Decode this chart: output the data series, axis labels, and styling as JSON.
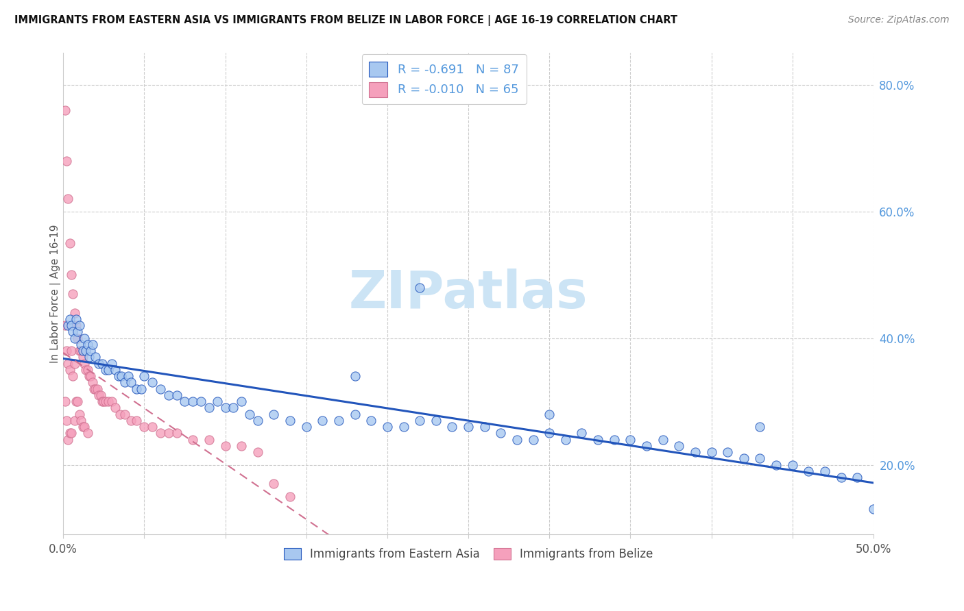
{
  "title": "IMMIGRANTS FROM EASTERN ASIA VS IMMIGRANTS FROM BELIZE IN LABOR FORCE | AGE 16-19 CORRELATION CHART",
  "source": "Source: ZipAtlas.com",
  "ylabel": "In Labor Force | Age 16-19",
  "y_ticks": [
    0.2,
    0.4,
    0.6,
    0.8
  ],
  "y_tick_labels": [
    "20.0%",
    "40.0%",
    "60.0%",
    "80.0%"
  ],
  "xlim": [
    0.0,
    0.5
  ],
  "ylim": [
    0.09,
    0.85
  ],
  "R_blue": -0.691,
  "N_blue": 87,
  "R_pink": -0.01,
  "N_pink": 65,
  "legend_label_blue": "Immigrants from Eastern Asia",
  "legend_label_pink": "Immigrants from Belize",
  "blue_scatter_color": "#a8c8f0",
  "pink_scatter_color": "#f5a0bc",
  "blue_line_color": "#2255bb",
  "pink_line_color": "#d07090",
  "watermark_text": "ZIPatlas",
  "watermark_color": "#cce4f5",
  "title_color": "#111111",
  "source_color": "#888888",
  "grid_color": "#cccccc",
  "tick_label_color": "#5599dd",
  "bottom_label_color": "#444444",
  "blue_x": [
    0.003,
    0.004,
    0.005,
    0.006,
    0.007,
    0.008,
    0.009,
    0.01,
    0.011,
    0.012,
    0.013,
    0.014,
    0.015,
    0.016,
    0.017,
    0.018,
    0.02,
    0.022,
    0.024,
    0.026,
    0.028,
    0.03,
    0.032,
    0.034,
    0.036,
    0.038,
    0.04,
    0.042,
    0.045,
    0.048,
    0.05,
    0.055,
    0.06,
    0.065,
    0.07,
    0.075,
    0.08,
    0.085,
    0.09,
    0.095,
    0.1,
    0.105,
    0.11,
    0.115,
    0.12,
    0.13,
    0.14,
    0.15,
    0.16,
    0.17,
    0.18,
    0.19,
    0.2,
    0.21,
    0.22,
    0.23,
    0.24,
    0.25,
    0.26,
    0.27,
    0.28,
    0.29,
    0.3,
    0.31,
    0.32,
    0.33,
    0.34,
    0.35,
    0.36,
    0.37,
    0.38,
    0.39,
    0.4,
    0.41,
    0.42,
    0.43,
    0.44,
    0.45,
    0.46,
    0.47,
    0.48,
    0.49,
    0.5,
    0.22,
    0.18,
    0.3,
    0.43
  ],
  "blue_y": [
    0.42,
    0.43,
    0.42,
    0.41,
    0.4,
    0.43,
    0.41,
    0.42,
    0.39,
    0.38,
    0.4,
    0.38,
    0.39,
    0.37,
    0.38,
    0.39,
    0.37,
    0.36,
    0.36,
    0.35,
    0.35,
    0.36,
    0.35,
    0.34,
    0.34,
    0.33,
    0.34,
    0.33,
    0.32,
    0.32,
    0.34,
    0.33,
    0.32,
    0.31,
    0.31,
    0.3,
    0.3,
    0.3,
    0.29,
    0.3,
    0.29,
    0.29,
    0.3,
    0.28,
    0.27,
    0.28,
    0.27,
    0.26,
    0.27,
    0.27,
    0.28,
    0.27,
    0.26,
    0.26,
    0.27,
    0.27,
    0.26,
    0.26,
    0.26,
    0.25,
    0.24,
    0.24,
    0.25,
    0.24,
    0.25,
    0.24,
    0.24,
    0.24,
    0.23,
    0.24,
    0.23,
    0.22,
    0.22,
    0.22,
    0.21,
    0.21,
    0.2,
    0.2,
    0.19,
    0.19,
    0.18,
    0.18,
    0.13,
    0.48,
    0.34,
    0.28,
    0.26
  ],
  "pink_x": [
    0.001,
    0.001,
    0.001,
    0.002,
    0.002,
    0.002,
    0.003,
    0.003,
    0.003,
    0.004,
    0.004,
    0.004,
    0.005,
    0.005,
    0.005,
    0.006,
    0.006,
    0.007,
    0.007,
    0.007,
    0.008,
    0.008,
    0.009,
    0.009,
    0.01,
    0.01,
    0.011,
    0.011,
    0.012,
    0.012,
    0.013,
    0.013,
    0.014,
    0.015,
    0.015,
    0.016,
    0.017,
    0.018,
    0.019,
    0.02,
    0.021,
    0.022,
    0.023,
    0.024,
    0.025,
    0.026,
    0.028,
    0.03,
    0.032,
    0.035,
    0.038,
    0.042,
    0.045,
    0.05,
    0.055,
    0.06,
    0.065,
    0.07,
    0.08,
    0.09,
    0.1,
    0.11,
    0.12,
    0.13,
    0.14
  ],
  "pink_y": [
    0.76,
    0.42,
    0.3,
    0.68,
    0.38,
    0.27,
    0.62,
    0.36,
    0.24,
    0.55,
    0.35,
    0.25,
    0.5,
    0.38,
    0.25,
    0.47,
    0.34,
    0.44,
    0.36,
    0.27,
    0.42,
    0.3,
    0.4,
    0.3,
    0.38,
    0.28,
    0.38,
    0.27,
    0.37,
    0.26,
    0.36,
    0.26,
    0.35,
    0.35,
    0.25,
    0.34,
    0.34,
    0.33,
    0.32,
    0.32,
    0.32,
    0.31,
    0.31,
    0.3,
    0.3,
    0.3,
    0.3,
    0.3,
    0.29,
    0.28,
    0.28,
    0.27,
    0.27,
    0.26,
    0.26,
    0.25,
    0.25,
    0.25,
    0.24,
    0.24,
    0.23,
    0.23,
    0.22,
    0.17,
    0.15
  ]
}
